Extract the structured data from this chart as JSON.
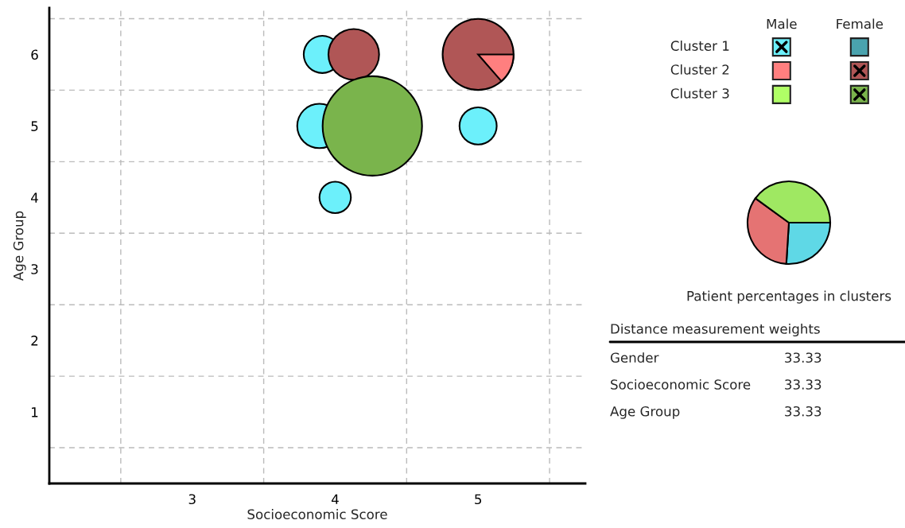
{
  "chart_data": [
    {
      "type": "bubble",
      "xlabel": "Socioeconomic Score",
      "ylabel": "Age Group",
      "xlim": [
        2.0,
        5.75
      ],
      "ylim": [
        0,
        6.65
      ],
      "xticks": [
        3,
        4,
        5
      ],
      "yticks": [
        1,
        2,
        3,
        4,
        5,
        6
      ],
      "grid": false,
      "ref_lines": [
        {
          "axis": "x",
          "value": 2.5,
          "color": "#bbbbbb",
          "line_style": "dashed"
        },
        {
          "axis": "x",
          "value": 3.5,
          "color": "#bbbbbb",
          "line_style": "dashed"
        },
        {
          "axis": "x",
          "value": 4.5,
          "color": "#bbbbbb",
          "line_style": "dashed"
        },
        {
          "axis": "x",
          "value": 5.5,
          "color": "#bbbbbb",
          "line_style": "dashed"
        },
        {
          "axis": "y",
          "value": 0.5,
          "color": "#bbbbbb",
          "line_style": "dashed"
        },
        {
          "axis": "y",
          "value": 1.5,
          "color": "#bbbbbb",
          "line_style": "dashed"
        },
        {
          "axis": "y",
          "value": 2.5,
          "color": "#bbbbbb",
          "line_style": "dashed"
        },
        {
          "axis": "y",
          "value": 3.5,
          "color": "#bbbbbb",
          "line_style": "dashed"
        },
        {
          "axis": "y",
          "value": 4.5,
          "color": "#bbbbbb",
          "line_style": "dashed"
        },
        {
          "axis": "y",
          "value": 5.5,
          "color": "#bbbbbb",
          "line_style": "dashed"
        },
        {
          "axis": "y",
          "value": 6.5,
          "color": "#bbbbbb",
          "line_style": "dashed"
        }
      ],
      "series": [
        {
          "color": "#6cf0fb",
          "x": [
            3.91,
            3.89,
            5.0,
            4.0
          ],
          "values": [
            6,
            5,
            5,
            4
          ],
          "sizes": [
            0.14,
            0.2,
            0.14,
            0.1
          ]
        },
        {
          "color": "#b05656",
          "x": [
            4.13,
            5.0
          ],
          "values": [
            6,
            6
          ],
          "sizes": [
            0.26,
            0.51
          ]
        },
        {
          "color": "#7ab44c",
          "x": [
            4.26
          ],
          "values": [
            5
          ],
          "sizes": [
            1
          ]
        }
      ]
    },
    {
      "type": "other",
      "categories": [
        "Cluster 1",
        "Cluster 2",
        "Cluster 3"
      ],
      "annotations": [
        "Male",
        "Female"
      ]
    },
    {
      "type": "pie",
      "title": "Patient percentages in clusters",
      "categories": [
        null,
        null,
        null
      ],
      "values": [
        26,
        34,
        40
      ],
      "colors": [
        "#5fd8e6",
        "#e57373",
        "#9fe862"
      ]
    },
    {
      "type": "other",
      "title": "Distance measurement weights",
      "categories": [
        "Gender",
        "Socioeconomic Score",
        "Age Group"
      ],
      "values": [
        33.33,
        33.33,
        33.33
      ],
      "data_labels": true
    }
  ]
}
